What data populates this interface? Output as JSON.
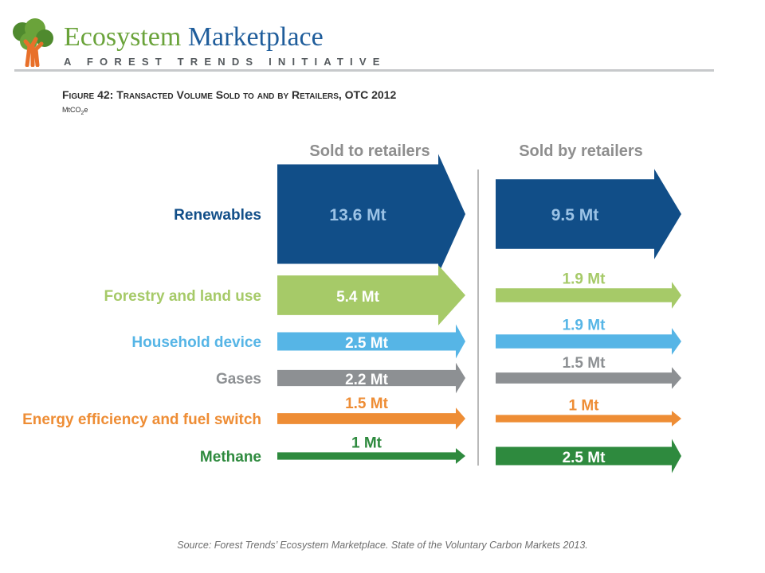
{
  "header": {
    "brand_part1": "Ecosystem",
    "brand_part2": "Marketplace",
    "tagline": "A FOREST TRENDS INITIATIVE",
    "figure_title": "Figure 42: Transacted Volume Sold to and by Retailers, OTC 2012",
    "units_main": "MtCO",
    "units_sub": "2",
    "units_tail": "e"
  },
  "colors": {
    "brand_green": "#6aa33a",
    "brand_blue": "#1f5d9b",
    "divider": "#b9b9b9"
  },
  "chart_data": {
    "type": "bar",
    "columns": [
      "Sold to retailers",
      "Sold by retailers"
    ],
    "categories": [
      "Renewables",
      "Forestry and land use",
      "Household device",
      "Gases",
      "Energy efficiency and fuel switch",
      "Methane"
    ],
    "category_colors": [
      "#114e88",
      "#a6ca68",
      "#56b5e6",
      "#8d9093",
      "#ee8d35",
      "#2e8a3e"
    ],
    "series": [
      {
        "name": "Sold to retailers",
        "values": [
          13.6,
          5.4,
          2.5,
          2.2,
          1.5,
          1
        ],
        "labels": [
          "13.6 Mt",
          "5.4 Mt",
          "2.5 Mt",
          "2.2 Mt",
          "1.5 Mt",
          "1 Mt"
        ]
      },
      {
        "name": "Sold by retailers",
        "values": [
          9.5,
          1.9,
          1.9,
          1.5,
          1,
          2.5
        ],
        "labels": [
          "9.5 Mt",
          "1.9 Mt",
          "1.9 Mt",
          "1.5 Mt",
          "1 Mt",
          "2.5 Mt"
        ]
      }
    ],
    "unit": "MtCO2e"
  },
  "footer": {
    "source": "Source: Forest Trends’ Ecosystem Marketplace. State of the Voluntary Carbon Markets 2013."
  }
}
